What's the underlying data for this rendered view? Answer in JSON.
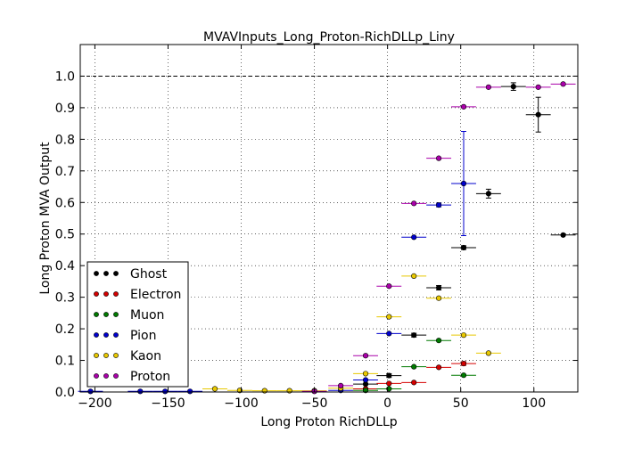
{
  "chart_data": {
    "type": "scatter",
    "title": "MVAVInputs_Long_Proton-RichDLLp_Liny",
    "xlabel": "Long Proton RichDLLp",
    "ylabel": "Long Proton MVA Output",
    "xlim": [
      -210,
      130
    ],
    "ylim": [
      0,
      1.1
    ],
    "x_ticks": [
      -200,
      -150,
      -100,
      -50,
      0,
      50,
      100
    ],
    "x_tick_labels": [
      "−200",
      "−150",
      "−100",
      "−50",
      "0",
      "50",
      "100"
    ],
    "y_ticks": [
      0,
      0.1,
      0.2,
      0.3,
      0.4,
      0.5,
      0.6,
      0.7,
      0.8,
      0.9,
      1.0
    ],
    "y_tick_labels": [
      "0.0",
      "0.1",
      "0.2",
      "0.3",
      "0.4",
      "0.5",
      "0.6",
      "0.7",
      "0.8",
      "0.9",
      "1.0"
    ],
    "grid": true,
    "reference_line_y": 1.0,
    "legend_position": "lower-left",
    "bin_half_width": 8.5,
    "series": [
      {
        "name": "Ghost",
        "color": "#000000",
        "points": [
          {
            "x": -15,
            "y": 0.025,
            "yerr": 0.005
          },
          {
            "x": 1,
            "y": 0.052,
            "yerr": 0.006
          },
          {
            "x": 18,
            "y": 0.18,
            "yerr": 0.006
          },
          {
            "x": 35,
            "y": 0.33,
            "yerr": 0.007
          },
          {
            "x": 52,
            "y": 0.457,
            "yerr": 0.006
          },
          {
            "x": 69,
            "y": 0.628,
            "yerr": 0.014
          },
          {
            "x": 86,
            "y": 0.967,
            "yerr": 0.012
          },
          {
            "x": 103,
            "y": 0.878,
            "yerr": 0.055
          },
          {
            "x": 120,
            "y": 0.497,
            "yerr": 0.005
          }
        ]
      },
      {
        "name": "Electron",
        "color": "#d40000",
        "points": [
          {
            "x": -15,
            "y": 0.01,
            "yerr": 0.003
          },
          {
            "x": 1,
            "y": 0.027,
            "yerr": 0.003
          },
          {
            "x": 18,
            "y": 0.03,
            "yerr": 0.004
          },
          {
            "x": 35,
            "y": 0.078,
            "yerr": 0.004
          },
          {
            "x": 52,
            "y": 0.09,
            "yerr": 0.006
          }
        ]
      },
      {
        "name": "Muon",
        "color": "#007a00",
        "points": [
          {
            "x": -15,
            "y": 0.005,
            "yerr": 0.002
          },
          {
            "x": 1,
            "y": 0.01,
            "yerr": 0.003
          },
          {
            "x": 18,
            "y": 0.08,
            "yerr": 0.004
          },
          {
            "x": 35,
            "y": 0.163,
            "yerr": 0.005
          },
          {
            "x": 52,
            "y": 0.053,
            "yerr": 0.004
          }
        ]
      },
      {
        "name": "Pion",
        "color": "#0000cc",
        "points": [
          {
            "x": -203,
            "y": 0.002,
            "yerr": 0.001
          },
          {
            "x": -169,
            "y": 0.002,
            "yerr": 0.001
          },
          {
            "x": -152,
            "y": 0.002,
            "yerr": 0.001
          },
          {
            "x": -135,
            "y": 0.002,
            "yerr": 0.001
          },
          {
            "x": -32,
            "y": 0.005,
            "yerr": 0.001
          },
          {
            "x": -15,
            "y": 0.038,
            "yerr": 0.003
          },
          {
            "x": 1,
            "y": 0.185,
            "yerr": 0.004
          },
          {
            "x": 18,
            "y": 0.49,
            "yerr": 0.005
          },
          {
            "x": 35,
            "y": 0.592,
            "yerr": 0.006
          },
          {
            "x": 52,
            "y": 0.66,
            "yerr": 0.165
          }
        ]
      },
      {
        "name": "Kaon",
        "color": "#e8c800",
        "points": [
          {
            "x": -118,
            "y": 0.01,
            "yerr": 0.002
          },
          {
            "x": -101,
            "y": 0.005,
            "yerr": 0.002
          },
          {
            "x": -84,
            "y": 0.004,
            "yerr": 0.001
          },
          {
            "x": -67,
            "y": 0.004,
            "yerr": 0.001
          },
          {
            "x": -50,
            "y": 0.004,
            "yerr": 0.001
          },
          {
            "x": -32,
            "y": 0.012,
            "yerr": 0.002
          },
          {
            "x": -15,
            "y": 0.058,
            "yerr": 0.003
          },
          {
            "x": 1,
            "y": 0.238,
            "yerr": 0.004
          },
          {
            "x": 18,
            "y": 0.367,
            "yerr": 0.005
          },
          {
            "x": 35,
            "y": 0.297,
            "yerr": 0.005
          },
          {
            "x": 52,
            "y": 0.18,
            "yerr": 0.005
          },
          {
            "x": 69,
            "y": 0.123,
            "yerr": 0.005
          }
        ]
      },
      {
        "name": "Proton",
        "color": "#aa00aa",
        "points": [
          {
            "x": -50,
            "y": 0.002,
            "yerr": 0.001
          },
          {
            "x": -32,
            "y": 0.02,
            "yerr": 0.002
          },
          {
            "x": -15,
            "y": 0.115,
            "yerr": 0.003
          },
          {
            "x": 1,
            "y": 0.335,
            "yerr": 0.004
          },
          {
            "x": 18,
            "y": 0.597,
            "yerr": 0.004
          },
          {
            "x": 35,
            "y": 0.74,
            "yerr": 0.004
          },
          {
            "x": 52,
            "y": 0.903,
            "yerr": 0.004
          },
          {
            "x": 69,
            "y": 0.965,
            "yerr": 0.003
          },
          {
            "x": 103,
            "y": 0.965,
            "yerr": 0.003
          },
          {
            "x": 120,
            "y": 0.975,
            "yerr": 0.003
          }
        ]
      }
    ]
  }
}
